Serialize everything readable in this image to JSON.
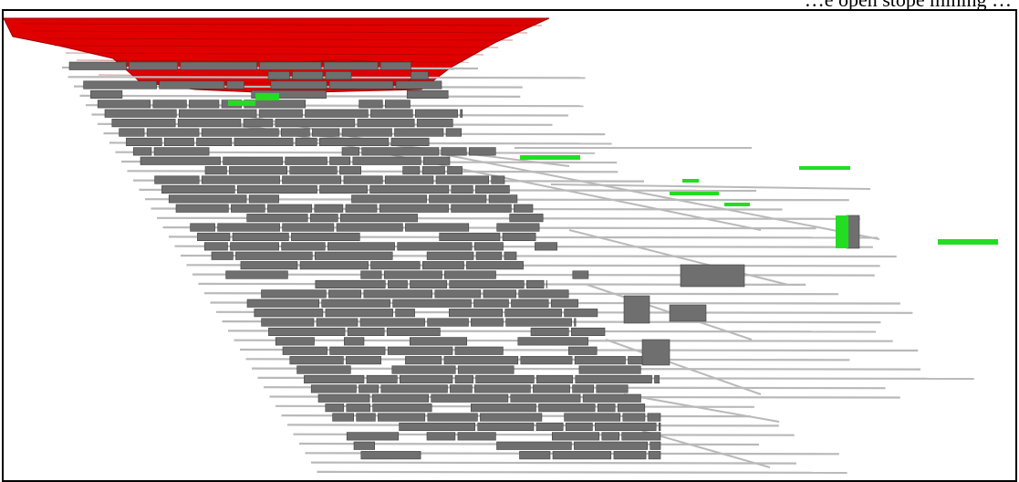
{
  "caption": {
    "text": "…e open stope mining …"
  },
  "figure": {
    "description_labels": {
      "open_pit": "open-pit",
      "stopes": "stopes",
      "drifts": "drifts",
      "highlighted": "highlighted-workings"
    },
    "colors": {
      "pit_fill": "#e00000",
      "pit_edge": "#9a0000",
      "stope_fill": "#6f6f6f",
      "stope_edge": "#3f3f3f",
      "drift": "#b9b9b9",
      "highlight": "#22dd22",
      "frame": "#000000",
      "background": "#ffffff"
    }
  }
}
